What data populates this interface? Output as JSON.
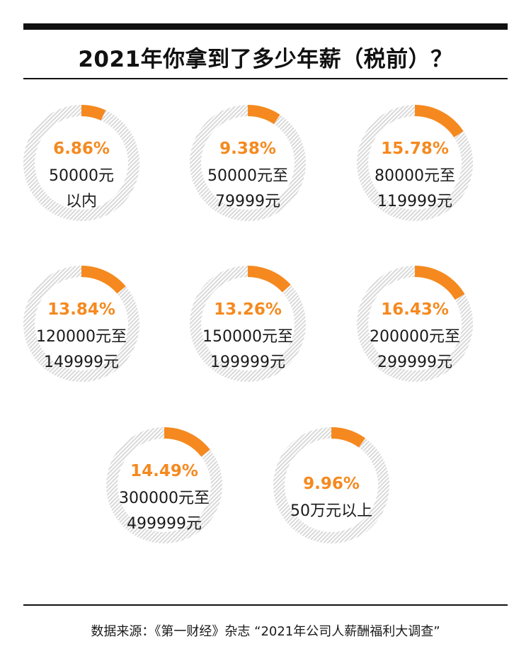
{
  "header": {
    "title": "2021年你拿到了多少年薪（税前）？"
  },
  "footer": {
    "source": "数据来源：《第一财经》杂志 “2021年公司人薪酬福利大调查”"
  },
  "colors": {
    "accent": "#f5891f",
    "track": "#d9d9d9"
  },
  "chart_data": {
    "type": "pie",
    "title": "2021年你拿到了多少年薪（税前）？",
    "unit": "%",
    "slices": [
      {
        "percent_label": "6.86%",
        "value": 6.86,
        "label_lines": [
          "50000元",
          "以内"
        ]
      },
      {
        "percent_label": "9.38%",
        "value": 9.38,
        "label_lines": [
          "50000元至",
          "79999元"
        ]
      },
      {
        "percent_label": "15.78%",
        "value": 15.78,
        "label_lines": [
          "80000元至",
          "119999元"
        ]
      },
      {
        "percent_label": "13.84%",
        "value": 13.84,
        "label_lines": [
          "120000元至",
          "149999元"
        ]
      },
      {
        "percent_label": "13.26%",
        "value": 13.26,
        "label_lines": [
          "150000元至",
          "199999元"
        ]
      },
      {
        "percent_label": "16.43%",
        "value": 16.43,
        "label_lines": [
          "200000元至",
          "299999元"
        ]
      },
      {
        "percent_label": "14.49%",
        "value": 14.49,
        "label_lines": [
          "300000元至",
          "499999元"
        ]
      },
      {
        "percent_label": "9.96%",
        "value": 9.96,
        "label_lines": [
          "50万元以上"
        ]
      }
    ]
  }
}
